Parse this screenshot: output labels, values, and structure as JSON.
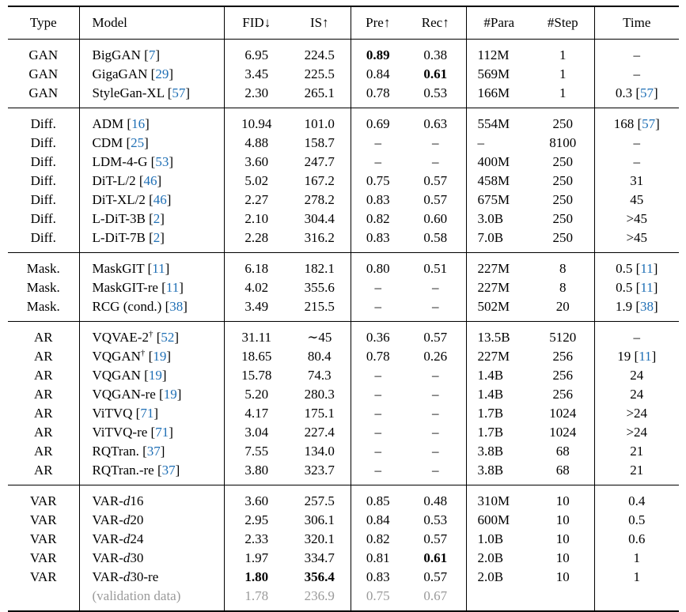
{
  "headers": {
    "type": "Type",
    "model": "Model",
    "fid": "FID↓",
    "is": "IS↑",
    "pre": "Pre↑",
    "rec": "Rec↑",
    "para": "#Para",
    "step": "#Step",
    "time": "Time"
  },
  "colors": {
    "citation": "#1f6fb5",
    "validation": "#9a9a9a"
  },
  "groups": [
    {
      "rows": [
        {
          "type": "GAN",
          "model": "BigGAN",
          "ref": "7",
          "fid": "6.95",
          "is": "224.5",
          "pre": "0.89",
          "rec": "0.38",
          "para": "112M",
          "step": "1",
          "time": "–",
          "bold": [
            "pre"
          ]
        },
        {
          "type": "GAN",
          "model": "GigaGAN",
          "ref": "29",
          "fid": "3.45",
          "is": "225.5",
          "pre": "0.84",
          "rec": "0.61",
          "para": "569M",
          "step": "1",
          "time": "–",
          "bold": [
            "rec"
          ]
        },
        {
          "type": "GAN",
          "model": "StyleGan-XL",
          "ref": "57",
          "fid": "2.30",
          "is": "265.1",
          "pre": "0.78",
          "rec": "0.53",
          "para": "166M",
          "step": "1",
          "time": "0.3",
          "time_ref": "57"
        }
      ]
    },
    {
      "rows": [
        {
          "type": "Diff.",
          "model": "ADM",
          "ref": "16",
          "fid": "10.94",
          "is": "101.0",
          "pre": "0.69",
          "rec": "0.63",
          "para": "554M",
          "step": "250",
          "time": "168",
          "time_ref": "57"
        },
        {
          "type": "Diff.",
          "model": "CDM",
          "ref": "25",
          "fid": "4.88",
          "is": "158.7",
          "pre": "–",
          "rec": "–",
          "para": "–",
          "step": "8100",
          "time": "–"
        },
        {
          "type": "Diff.",
          "model": "LDM-4-G",
          "ref": "53",
          "fid": "3.60",
          "is": "247.7",
          "pre": "–",
          "rec": "–",
          "para": "400M",
          "step": "250",
          "time": "–"
        },
        {
          "type": "Diff.",
          "model": "DiT-L/2",
          "ref": "46",
          "fid": "5.02",
          "is": "167.2",
          "pre": "0.75",
          "rec": "0.57",
          "para": "458M",
          "step": "250",
          "time": "31"
        },
        {
          "type": "Diff.",
          "model": "DiT-XL/2",
          "ref": "46",
          "fid": "2.27",
          "is": "278.2",
          "pre": "0.83",
          "rec": "0.57",
          "para": "675M",
          "step": "250",
          "time": "45"
        },
        {
          "type": "Diff.",
          "model": "L-DiT-3B",
          "ref": "2",
          "fid": "2.10",
          "is": "304.4",
          "pre": "0.82",
          "rec": "0.60",
          "para": "3.0B",
          "step": "250",
          "time": ">45"
        },
        {
          "type": "Diff.",
          "model": "L-DiT-7B",
          "ref": "2",
          "fid": "2.28",
          "is": "316.2",
          "pre": "0.83",
          "rec": "0.58",
          "para": "7.0B",
          "step": "250",
          "time": ">45"
        }
      ]
    },
    {
      "rows": [
        {
          "type": "Mask.",
          "model": "MaskGIT",
          "ref": "11",
          "fid": "6.18",
          "is": "182.1",
          "pre": "0.80",
          "rec": "0.51",
          "para": "227M",
          "step": "8",
          "time": "0.5",
          "time_ref": "11"
        },
        {
          "type": "Mask.",
          "model": "MaskGIT-re",
          "ref": "11",
          "fid": "4.02",
          "is": "355.6",
          "pre": "–",
          "rec": "–",
          "para": "227M",
          "step": "8",
          "time": "0.5",
          "time_ref": "11"
        },
        {
          "type": "Mask.",
          "model": "RCG (cond.)",
          "ref": "38",
          "fid": "3.49",
          "is": "215.5",
          "pre": "–",
          "rec": "–",
          "para": "502M",
          "step": "20",
          "time": "1.9",
          "time_ref": "38"
        }
      ]
    },
    {
      "rows": [
        {
          "type": "AR",
          "model": "VQVAE-2",
          "sup": "†",
          "ref": "52",
          "fid": "31.11",
          "is": "∼45",
          "pre": "0.36",
          "rec": "0.57",
          "para": "13.5B",
          "step": "5120",
          "time": "–"
        },
        {
          "type": "AR",
          "model": "VQGAN",
          "sup": "†",
          "ref": "19",
          "fid": "18.65",
          "is": "80.4",
          "pre": "0.78",
          "rec": "0.26",
          "para": "227M",
          "step": "256",
          "time": "19",
          "time_ref": "11"
        },
        {
          "type": "AR",
          "model": "VQGAN",
          "ref": "19",
          "fid": "15.78",
          "is": "74.3",
          "pre": "–",
          "rec": "–",
          "para": "1.4B",
          "step": "256",
          "time": "24"
        },
        {
          "type": "AR",
          "model": "VQGAN-re",
          "ref": "19",
          "fid": "5.20",
          "is": "280.3",
          "pre": "–",
          "rec": "–",
          "para": "1.4B",
          "step": "256",
          "time": "24"
        },
        {
          "type": "AR",
          "model": "ViTVQ",
          "ref": "71",
          "fid": "4.17",
          "is": "175.1",
          "pre": "–",
          "rec": "–",
          "para": "1.7B",
          "step": "1024",
          "time": ">24"
        },
        {
          "type": "AR",
          "model": "ViTVQ-re",
          "ref": "71",
          "fid": "3.04",
          "is": "227.4",
          "pre": "–",
          "rec": "–",
          "para": "1.7B",
          "step": "1024",
          "time": ">24"
        },
        {
          "type": "AR",
          "model": "RQTran.",
          "ref": "37",
          "fid": "7.55",
          "is": "134.0",
          "pre": "–",
          "rec": "–",
          "para": "3.8B",
          "step": "68",
          "time": "21"
        },
        {
          "type": "AR",
          "model": "RQTran.-re",
          "ref": "37",
          "fid": "3.80",
          "is": "323.7",
          "pre": "–",
          "rec": "–",
          "para": "3.8B",
          "step": "68",
          "time": "21"
        }
      ]
    },
    {
      "rows": [
        {
          "type": "VAR",
          "model": "VAR-",
          "model_it": "d",
          "model_rest": "16",
          "fid": "3.60",
          "is": "257.5",
          "pre": "0.85",
          "rec": "0.48",
          "para": "310M",
          "step": "10",
          "time": "0.4"
        },
        {
          "type": "VAR",
          "model": "VAR-",
          "model_it": "d",
          "model_rest": "20",
          "fid": "2.95",
          "is": "306.1",
          "pre": "0.84",
          "rec": "0.53",
          "para": "600M",
          "step": "10",
          "time": "0.5"
        },
        {
          "type": "VAR",
          "model": "VAR-",
          "model_it": "d",
          "model_rest": "24",
          "fid": "2.33",
          "is": "320.1",
          "pre": "0.82",
          "rec": "0.57",
          "para": "1.0B",
          "step": "10",
          "time": "0.6"
        },
        {
          "type": "VAR",
          "model": "VAR-",
          "model_it": "d",
          "model_rest": "30",
          "fid": "1.97",
          "is": "334.7",
          "pre": "0.81",
          "rec": "0.61",
          "para": "2.0B",
          "step": "10",
          "time": "1",
          "bold": [
            "rec"
          ]
        },
        {
          "type": "VAR",
          "model": "VAR-",
          "model_it": "d",
          "model_rest": "30-re",
          "fid": "1.80",
          "is": "356.4",
          "pre": "0.83",
          "rec": "0.57",
          "para": "2.0B",
          "step": "10",
          "time": "1",
          "bold": [
            "fid",
            "is"
          ]
        },
        {
          "type": "",
          "model": "(validation data)",
          "fid": "1.78",
          "is": "236.9",
          "pre": "0.75",
          "rec": "0.67",
          "para": "",
          "step": "",
          "time": "",
          "gray": true
        }
      ]
    }
  ]
}
